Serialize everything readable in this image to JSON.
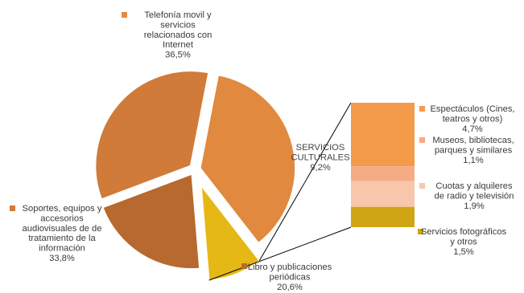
{
  "chart_data": [
    {
      "type": "pie",
      "title": "",
      "slices": [
        {
          "label": [
            "Telefonía movil y",
            "servicios",
            "relacionados con",
            "Internet"
          ],
          "value": 36.5,
          "value_label": "36,5%",
          "color": "#E0893F"
        },
        {
          "label": [
            "SERVICIOS",
            "CULTURALES"
          ],
          "value": 9.2,
          "value_label": "9,2%",
          "color": "#E6B816",
          "exploded": true
        },
        {
          "label": [
            "Libro y publicaciones",
            "periódicas"
          ],
          "value": 20.6,
          "value_label": "20,6%",
          "color": "#B8692F"
        },
        {
          "label": [
            "Soportes, equipos y",
            "accesorios",
            "audiovisuales  de de",
            "tratamiento de la",
            "información"
          ],
          "value": 33.8,
          "value_label": "33,8%",
          "color": "#D07B3A"
        }
      ]
    },
    {
      "type": "bar",
      "stacked": true,
      "title": "",
      "series": [
        {
          "name": [
            "Espectáculos (Cines,",
            "teatros y otros)"
          ],
          "value": 4.7,
          "value_label": "4,7%",
          "color": "#F39B4A"
        },
        {
          "name": [
            "Museos, bibliotecas,",
            "parques y similares"
          ],
          "value": 1.1,
          "value_label": "1,1%",
          "color": "#F5AC85"
        },
        {
          "name": [
            "Cuotas y alquileres",
            "de radio y televisión"
          ],
          "value": 1.9,
          "value_label": "1,9%",
          "color": "#F8C6AB"
        },
        {
          "name": [
            "Servicios fotográficos",
            "y otros"
          ],
          "value": 1.5,
          "value_label": "1,5%",
          "color": "#CFA514"
        }
      ]
    }
  ]
}
